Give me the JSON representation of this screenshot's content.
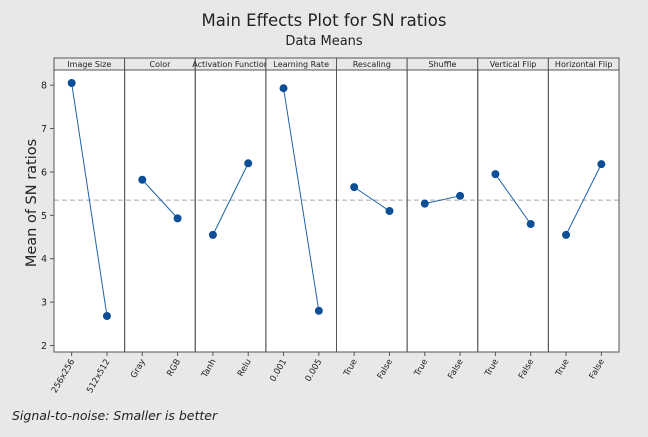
{
  "chart_data": {
    "type": "line",
    "title": "Main Effects Plot for SN ratios",
    "subtitle": "Data Means",
    "ylabel": "Mean of SN ratios",
    "xlabel": "",
    "ylim": [
      1.85,
      8.35
    ],
    "yticks": [
      2,
      3,
      4,
      5,
      6,
      7,
      8
    ],
    "reference_mean": 5.35,
    "footnote": "Signal-to-noise: Smaller is better",
    "panels": [
      {
        "name": "Image Size",
        "levels": [
          "256x256",
          "512x512"
        ],
        "values": [
          8.05,
          2.68
        ]
      },
      {
        "name": "Color",
        "levels": [
          "Gray",
          "RGB"
        ],
        "values": [
          5.82,
          4.93
        ]
      },
      {
        "name": "Activation Function",
        "levels": [
          "Tanh",
          "Relu"
        ],
        "values": [
          4.55,
          6.2
        ]
      },
      {
        "name": "Learning Rate",
        "levels": [
          "0.001",
          "0.005"
        ],
        "values": [
          7.93,
          2.8
        ]
      },
      {
        "name": "Rescaling",
        "levels": [
          "True",
          "False"
        ],
        "values": [
          5.65,
          5.1
        ]
      },
      {
        "name": "Shuffle",
        "levels": [
          "True",
          "False"
        ],
        "values": [
          5.27,
          5.45
        ]
      },
      {
        "name": "Vertical Flip",
        "levels": [
          "True",
          "False"
        ],
        "values": [
          5.95,
          4.8
        ]
      },
      {
        "name": "Horizontal Flip",
        "levels": [
          "True",
          "False"
        ],
        "values": [
          4.55,
          6.18
        ]
      }
    ],
    "colors": {
      "series": "#1f62a8",
      "marker": "#0d4f96",
      "reference": "#a9a9a9",
      "panel_header": "#e8e8e8"
    }
  }
}
